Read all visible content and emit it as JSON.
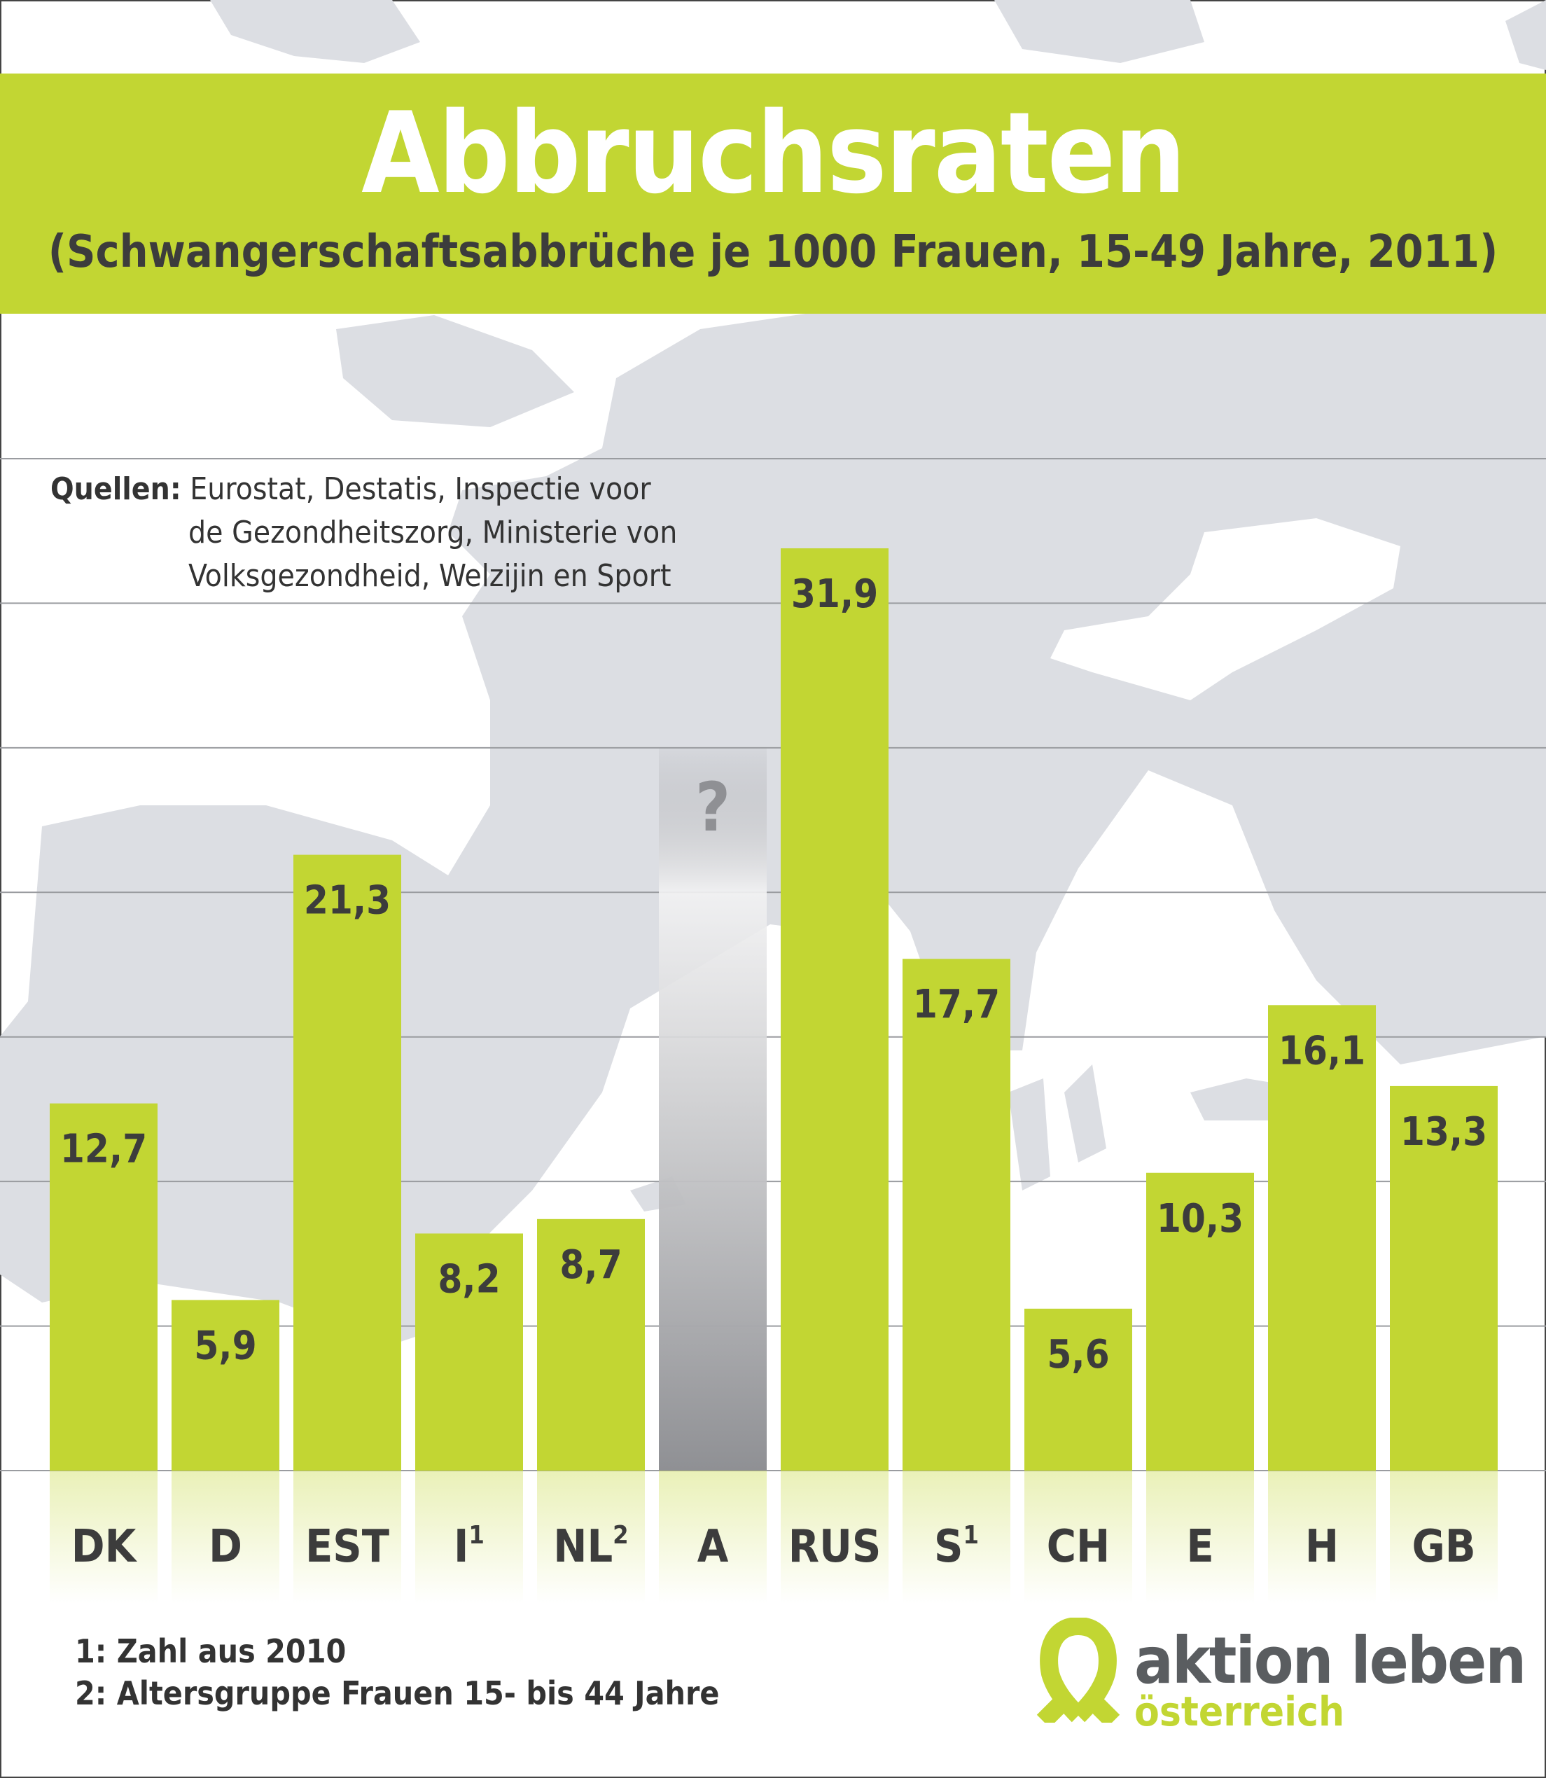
{
  "title": "Abbruchsraten",
  "subtitle": "(Schwangerschaftsabbrüche je 1000 Frauen, 15-49 Jahre, 2011)",
  "sources": {
    "label": "Quellen:",
    "lines": [
      "Eurostat, Destatis, Inspectie voor",
      "de Gezondheitszorg, Ministerie von",
      "Volksgezondheid, Welzijin en Sport"
    ]
  },
  "footnotes": [
    "1: Zahl aus 2010",
    "2: Altersgruppe Frauen 15- bis 44 Jahre"
  ],
  "logo": {
    "main": "aktion leben",
    "sub": "österreich"
  },
  "colors": {
    "bar": "#c2d633",
    "text": "#3c3c3c",
    "map": "#dcdee3",
    "grid": "#9a9ca0",
    "unknown_bar": "#8f9094"
  },
  "chart_data": {
    "type": "bar",
    "categories": [
      "DK",
      "D",
      "EST",
      "I",
      "NL",
      "A",
      "RUS",
      "S",
      "CH",
      "E",
      "H",
      "GB"
    ],
    "category_superscripts": [
      "",
      "",
      "",
      "1",
      "2",
      "",
      "",
      "1",
      "",
      "",
      "",
      ""
    ],
    "values": [
      12.7,
      5.9,
      21.3,
      8.2,
      8.7,
      null,
      31.9,
      17.7,
      5.6,
      10.3,
      16.1,
      13.3
    ],
    "value_labels": [
      "12,7",
      "5,9",
      "21,3",
      "8,2",
      "8,7",
      "?",
      "31,9",
      "17,7",
      "5,6",
      "10,3",
      "16,1",
      "13,3"
    ],
    "ylim": [
      0,
      35
    ],
    "grid": true,
    "grid_step": 5,
    "y_tick_labels_shown": false
  }
}
